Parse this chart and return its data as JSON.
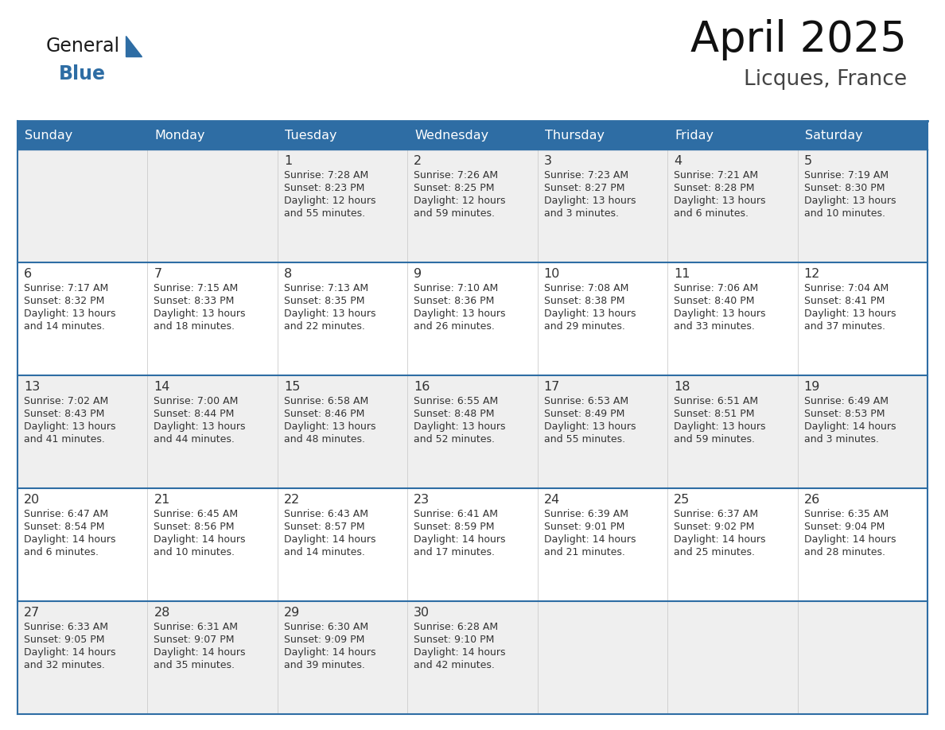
{
  "title": "April 2025",
  "subtitle": "Licques, France",
  "header_bg": "#2E6DA4",
  "header_text_color": "#FFFFFF",
  "cell_bg_odd": "#EFEFEF",
  "cell_bg_even": "#FFFFFF",
  "border_color": "#2E6DA4",
  "text_color": "#333333",
  "days_of_week": [
    "Sunday",
    "Monday",
    "Tuesday",
    "Wednesday",
    "Thursday",
    "Friday",
    "Saturday"
  ],
  "weeks": [
    [
      {
        "day": "",
        "info": ""
      },
      {
        "day": "",
        "info": ""
      },
      {
        "day": "1",
        "info": "Sunrise: 7:28 AM\nSunset: 8:23 PM\nDaylight: 12 hours\nand 55 minutes."
      },
      {
        "day": "2",
        "info": "Sunrise: 7:26 AM\nSunset: 8:25 PM\nDaylight: 12 hours\nand 59 minutes."
      },
      {
        "day": "3",
        "info": "Sunrise: 7:23 AM\nSunset: 8:27 PM\nDaylight: 13 hours\nand 3 minutes."
      },
      {
        "day": "4",
        "info": "Sunrise: 7:21 AM\nSunset: 8:28 PM\nDaylight: 13 hours\nand 6 minutes."
      },
      {
        "day": "5",
        "info": "Sunrise: 7:19 AM\nSunset: 8:30 PM\nDaylight: 13 hours\nand 10 minutes."
      }
    ],
    [
      {
        "day": "6",
        "info": "Sunrise: 7:17 AM\nSunset: 8:32 PM\nDaylight: 13 hours\nand 14 minutes."
      },
      {
        "day": "7",
        "info": "Sunrise: 7:15 AM\nSunset: 8:33 PM\nDaylight: 13 hours\nand 18 minutes."
      },
      {
        "day": "8",
        "info": "Sunrise: 7:13 AM\nSunset: 8:35 PM\nDaylight: 13 hours\nand 22 minutes."
      },
      {
        "day": "9",
        "info": "Sunrise: 7:10 AM\nSunset: 8:36 PM\nDaylight: 13 hours\nand 26 minutes."
      },
      {
        "day": "10",
        "info": "Sunrise: 7:08 AM\nSunset: 8:38 PM\nDaylight: 13 hours\nand 29 minutes."
      },
      {
        "day": "11",
        "info": "Sunrise: 7:06 AM\nSunset: 8:40 PM\nDaylight: 13 hours\nand 33 minutes."
      },
      {
        "day": "12",
        "info": "Sunrise: 7:04 AM\nSunset: 8:41 PM\nDaylight: 13 hours\nand 37 minutes."
      }
    ],
    [
      {
        "day": "13",
        "info": "Sunrise: 7:02 AM\nSunset: 8:43 PM\nDaylight: 13 hours\nand 41 minutes."
      },
      {
        "day": "14",
        "info": "Sunrise: 7:00 AM\nSunset: 8:44 PM\nDaylight: 13 hours\nand 44 minutes."
      },
      {
        "day": "15",
        "info": "Sunrise: 6:58 AM\nSunset: 8:46 PM\nDaylight: 13 hours\nand 48 minutes."
      },
      {
        "day": "16",
        "info": "Sunrise: 6:55 AM\nSunset: 8:48 PM\nDaylight: 13 hours\nand 52 minutes."
      },
      {
        "day": "17",
        "info": "Sunrise: 6:53 AM\nSunset: 8:49 PM\nDaylight: 13 hours\nand 55 minutes."
      },
      {
        "day": "18",
        "info": "Sunrise: 6:51 AM\nSunset: 8:51 PM\nDaylight: 13 hours\nand 59 minutes."
      },
      {
        "day": "19",
        "info": "Sunrise: 6:49 AM\nSunset: 8:53 PM\nDaylight: 14 hours\nand 3 minutes."
      }
    ],
    [
      {
        "day": "20",
        "info": "Sunrise: 6:47 AM\nSunset: 8:54 PM\nDaylight: 14 hours\nand 6 minutes."
      },
      {
        "day": "21",
        "info": "Sunrise: 6:45 AM\nSunset: 8:56 PM\nDaylight: 14 hours\nand 10 minutes."
      },
      {
        "day": "22",
        "info": "Sunrise: 6:43 AM\nSunset: 8:57 PM\nDaylight: 14 hours\nand 14 minutes."
      },
      {
        "day": "23",
        "info": "Sunrise: 6:41 AM\nSunset: 8:59 PM\nDaylight: 14 hours\nand 17 minutes."
      },
      {
        "day": "24",
        "info": "Sunrise: 6:39 AM\nSunset: 9:01 PM\nDaylight: 14 hours\nand 21 minutes."
      },
      {
        "day": "25",
        "info": "Sunrise: 6:37 AM\nSunset: 9:02 PM\nDaylight: 14 hours\nand 25 minutes."
      },
      {
        "day": "26",
        "info": "Sunrise: 6:35 AM\nSunset: 9:04 PM\nDaylight: 14 hours\nand 28 minutes."
      }
    ],
    [
      {
        "day": "27",
        "info": "Sunrise: 6:33 AM\nSunset: 9:05 PM\nDaylight: 14 hours\nand 32 minutes."
      },
      {
        "day": "28",
        "info": "Sunrise: 6:31 AM\nSunset: 9:07 PM\nDaylight: 14 hours\nand 35 minutes."
      },
      {
        "day": "29",
        "info": "Sunrise: 6:30 AM\nSunset: 9:09 PM\nDaylight: 14 hours\nand 39 minutes."
      },
      {
        "day": "30",
        "info": "Sunrise: 6:28 AM\nSunset: 9:10 PM\nDaylight: 14 hours\nand 42 minutes."
      },
      {
        "day": "",
        "info": ""
      },
      {
        "day": "",
        "info": ""
      },
      {
        "day": "",
        "info": ""
      }
    ]
  ],
  "logo_general_color": "#1a1a1a",
  "logo_blue_color": "#2E6DA4",
  "figsize": [
    11.88,
    9.18
  ],
  "dpi": 100
}
